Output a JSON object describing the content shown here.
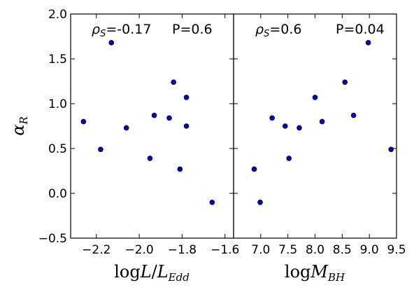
{
  "chart_data": [
    {
      "type": "scatter",
      "xlabel": "logL/L_Edd",
      "ylabel": "α_R",
      "xlim": [
        -2.32,
        -1.56
      ],
      "ylim": [
        -0.5,
        2.0
      ],
      "xticks": [
        "−2.2",
        "−2.0",
        "−1.8",
        "−1.6"
      ],
      "yticks": [
        "−0.5",
        "0.0",
        "0.5",
        "1.0",
        "1.5",
        "2.0"
      ],
      "annotation_rho_symbol": "ρ",
      "annotation_rho_sub": "S",
      "annotation_rho_value": "=-0.17",
      "annotation_p": "P=0.6",
      "color": "#0000cc",
      "x": [
        -2.26,
        -2.18,
        -2.13,
        -2.06,
        -1.95,
        -1.93,
        -1.86,
        -1.84,
        -1.81,
        -1.78,
        -1.78,
        -1.66
      ],
      "y": [
        0.8,
        0.49,
        1.68,
        0.73,
        0.39,
        0.87,
        0.84,
        1.24,
        0.27,
        1.07,
        0.75,
        -0.1
      ]
    },
    {
      "type": "scatter",
      "xlabel": "logM_BH",
      "xlim": [
        6.5,
        9.5
      ],
      "ylim": [
        -0.5,
        2.0
      ],
      "xticks": [
        "7.0",
        "7.5",
        "8.0",
        "8.5",
        "9.0",
        "9.5"
      ],
      "annotation_rho_symbol": "ρ",
      "annotation_rho_sub": "S",
      "annotation_rho_value": "=0.6",
      "annotation_p": "P=0.04",
      "color": "#0000cc",
      "x": [
        6.88,
        6.99,
        7.21,
        7.45,
        7.52,
        7.71,
        8.0,
        8.13,
        8.55,
        8.71,
        8.98,
        9.4
      ],
      "y": [
        0.27,
        -0.1,
        0.84,
        0.75,
        0.39,
        0.73,
        1.07,
        0.8,
        1.24,
        0.87,
        1.68,
        0.49
      ]
    }
  ]
}
